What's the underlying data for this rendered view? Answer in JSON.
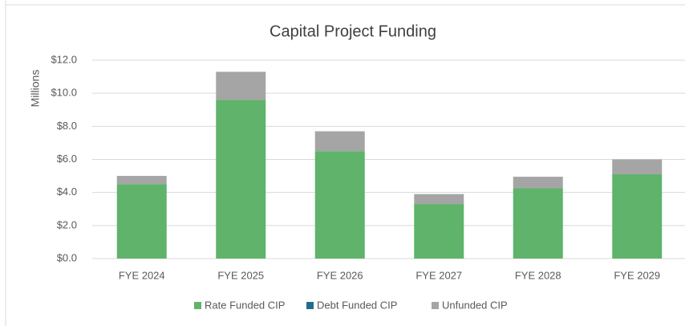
{
  "chart_data": {
    "type": "stacked_bar",
    "title": "Capital Project Funding",
    "y_label": "Millions",
    "categories": [
      "FYE 2024",
      "FYE 2025",
      "FYE 2026",
      "FYE 2027",
      "FYE 2028",
      "FYE 2029"
    ],
    "series": [
      {
        "name": "Rate Funded CIP",
        "color": "#5fb36a",
        "values": [
          4.5,
          9.6,
          6.5,
          3.3,
          4.25,
          5.1
        ]
      },
      {
        "name": "Debt Funded CIP",
        "color": "#1f6e8c",
        "values": [
          0,
          0,
          0,
          0,
          0,
          0
        ]
      },
      {
        "name": "Unfunded CIP",
        "color": "#a5a5a5",
        "values": [
          0.5,
          1.7,
          1.2,
          0.6,
          0.7,
          0.9
        ]
      }
    ],
    "ylim": [
      0,
      12
    ],
    "yticks": [
      {
        "value": 0,
        "label": "$0.0"
      },
      {
        "value": 2,
        "label": "$2.0"
      },
      {
        "value": 4,
        "label": "$4.0"
      },
      {
        "value": 6,
        "label": "$6.0"
      },
      {
        "value": 8,
        "label": "$8.0"
      },
      {
        "value": 10,
        "label": "$10.0"
      },
      {
        "value": 12,
        "label": "$12.0"
      }
    ],
    "grid": true,
    "legend": "bottom"
  }
}
